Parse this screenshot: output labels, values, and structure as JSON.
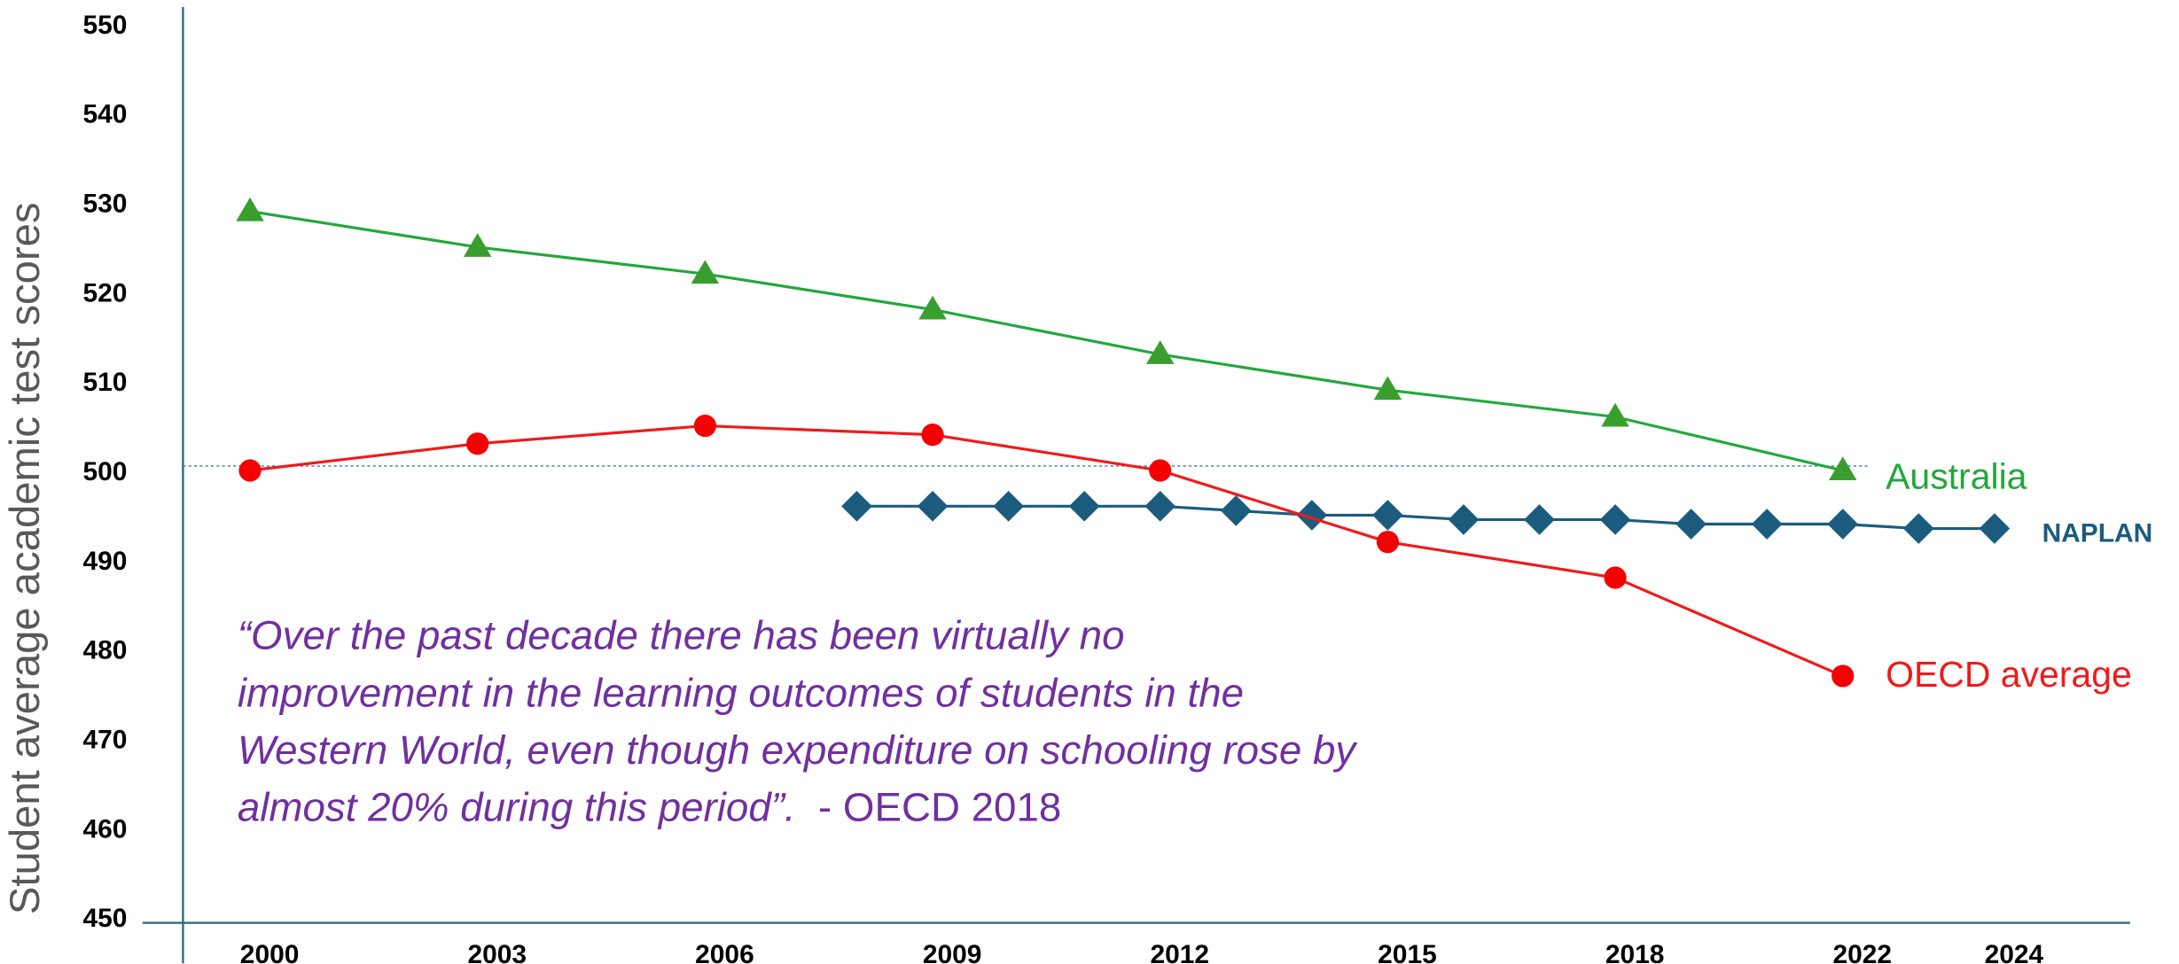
{
  "chart_data": {
    "type": "line",
    "ylabel": "Student average academic test scores",
    "categories": [
      "2000",
      null,
      null,
      "2003",
      null,
      null,
      "2006",
      null,
      null,
      "2009",
      null,
      null,
      "2012",
      null,
      null,
      "2015",
      null,
      null,
      "2018",
      null,
      null,
      "2022",
      null,
      "2024"
    ],
    "connect_gaps": true,
    "series": [
      {
        "name": "Australia",
        "color": "#22a83c",
        "marker_color": "#3a9e2f",
        "marker": "triangle",
        "values": [
          529,
          null,
          null,
          525,
          null,
          null,
          522,
          null,
          null,
          518,
          null,
          null,
          513,
          null,
          null,
          509,
          null,
          null,
          506,
          null,
          null,
          500,
          null,
          null
        ]
      },
      {
        "name": "NAPLAN",
        "color": "#1b5c7e",
        "marker_color": "#1b5c7e",
        "marker": "diamond",
        "values": [
          null,
          null,
          null,
          null,
          null,
          null,
          null,
          null,
          496,
          496,
          496,
          496,
          496,
          495.5,
          495,
          495,
          494.5,
          494.5,
          494.5,
          494,
          494,
          494,
          493.5,
          493.5
        ]
      },
      {
        "name": "OECD average",
        "color": "#f01a1a",
        "marker_color": "#f40000",
        "marker": "circle",
        "values": [
          500,
          null,
          null,
          503,
          null,
          null,
          505,
          null,
          null,
          504,
          null,
          null,
          500,
          null,
          null,
          492,
          null,
          null,
          488,
          null,
          null,
          477,
          null,
          null
        ]
      }
    ],
    "reference_line": 500.5,
    "ylim": [
      450,
      550
    ],
    "yticks": [
      450,
      460,
      470,
      480,
      490,
      500,
      510,
      520,
      530,
      540,
      550
    ],
    "annotation": {
      "lines": [
        "“Over the past decade there has been virtually no",
        "improvement in the learning outcomes of students in the",
        "Western World, even though expenditure on schooling rose by",
        "almost 20% during this period”."
      ],
      "source": "  - OECD 2018",
      "color": "#7030a0"
    }
  }
}
